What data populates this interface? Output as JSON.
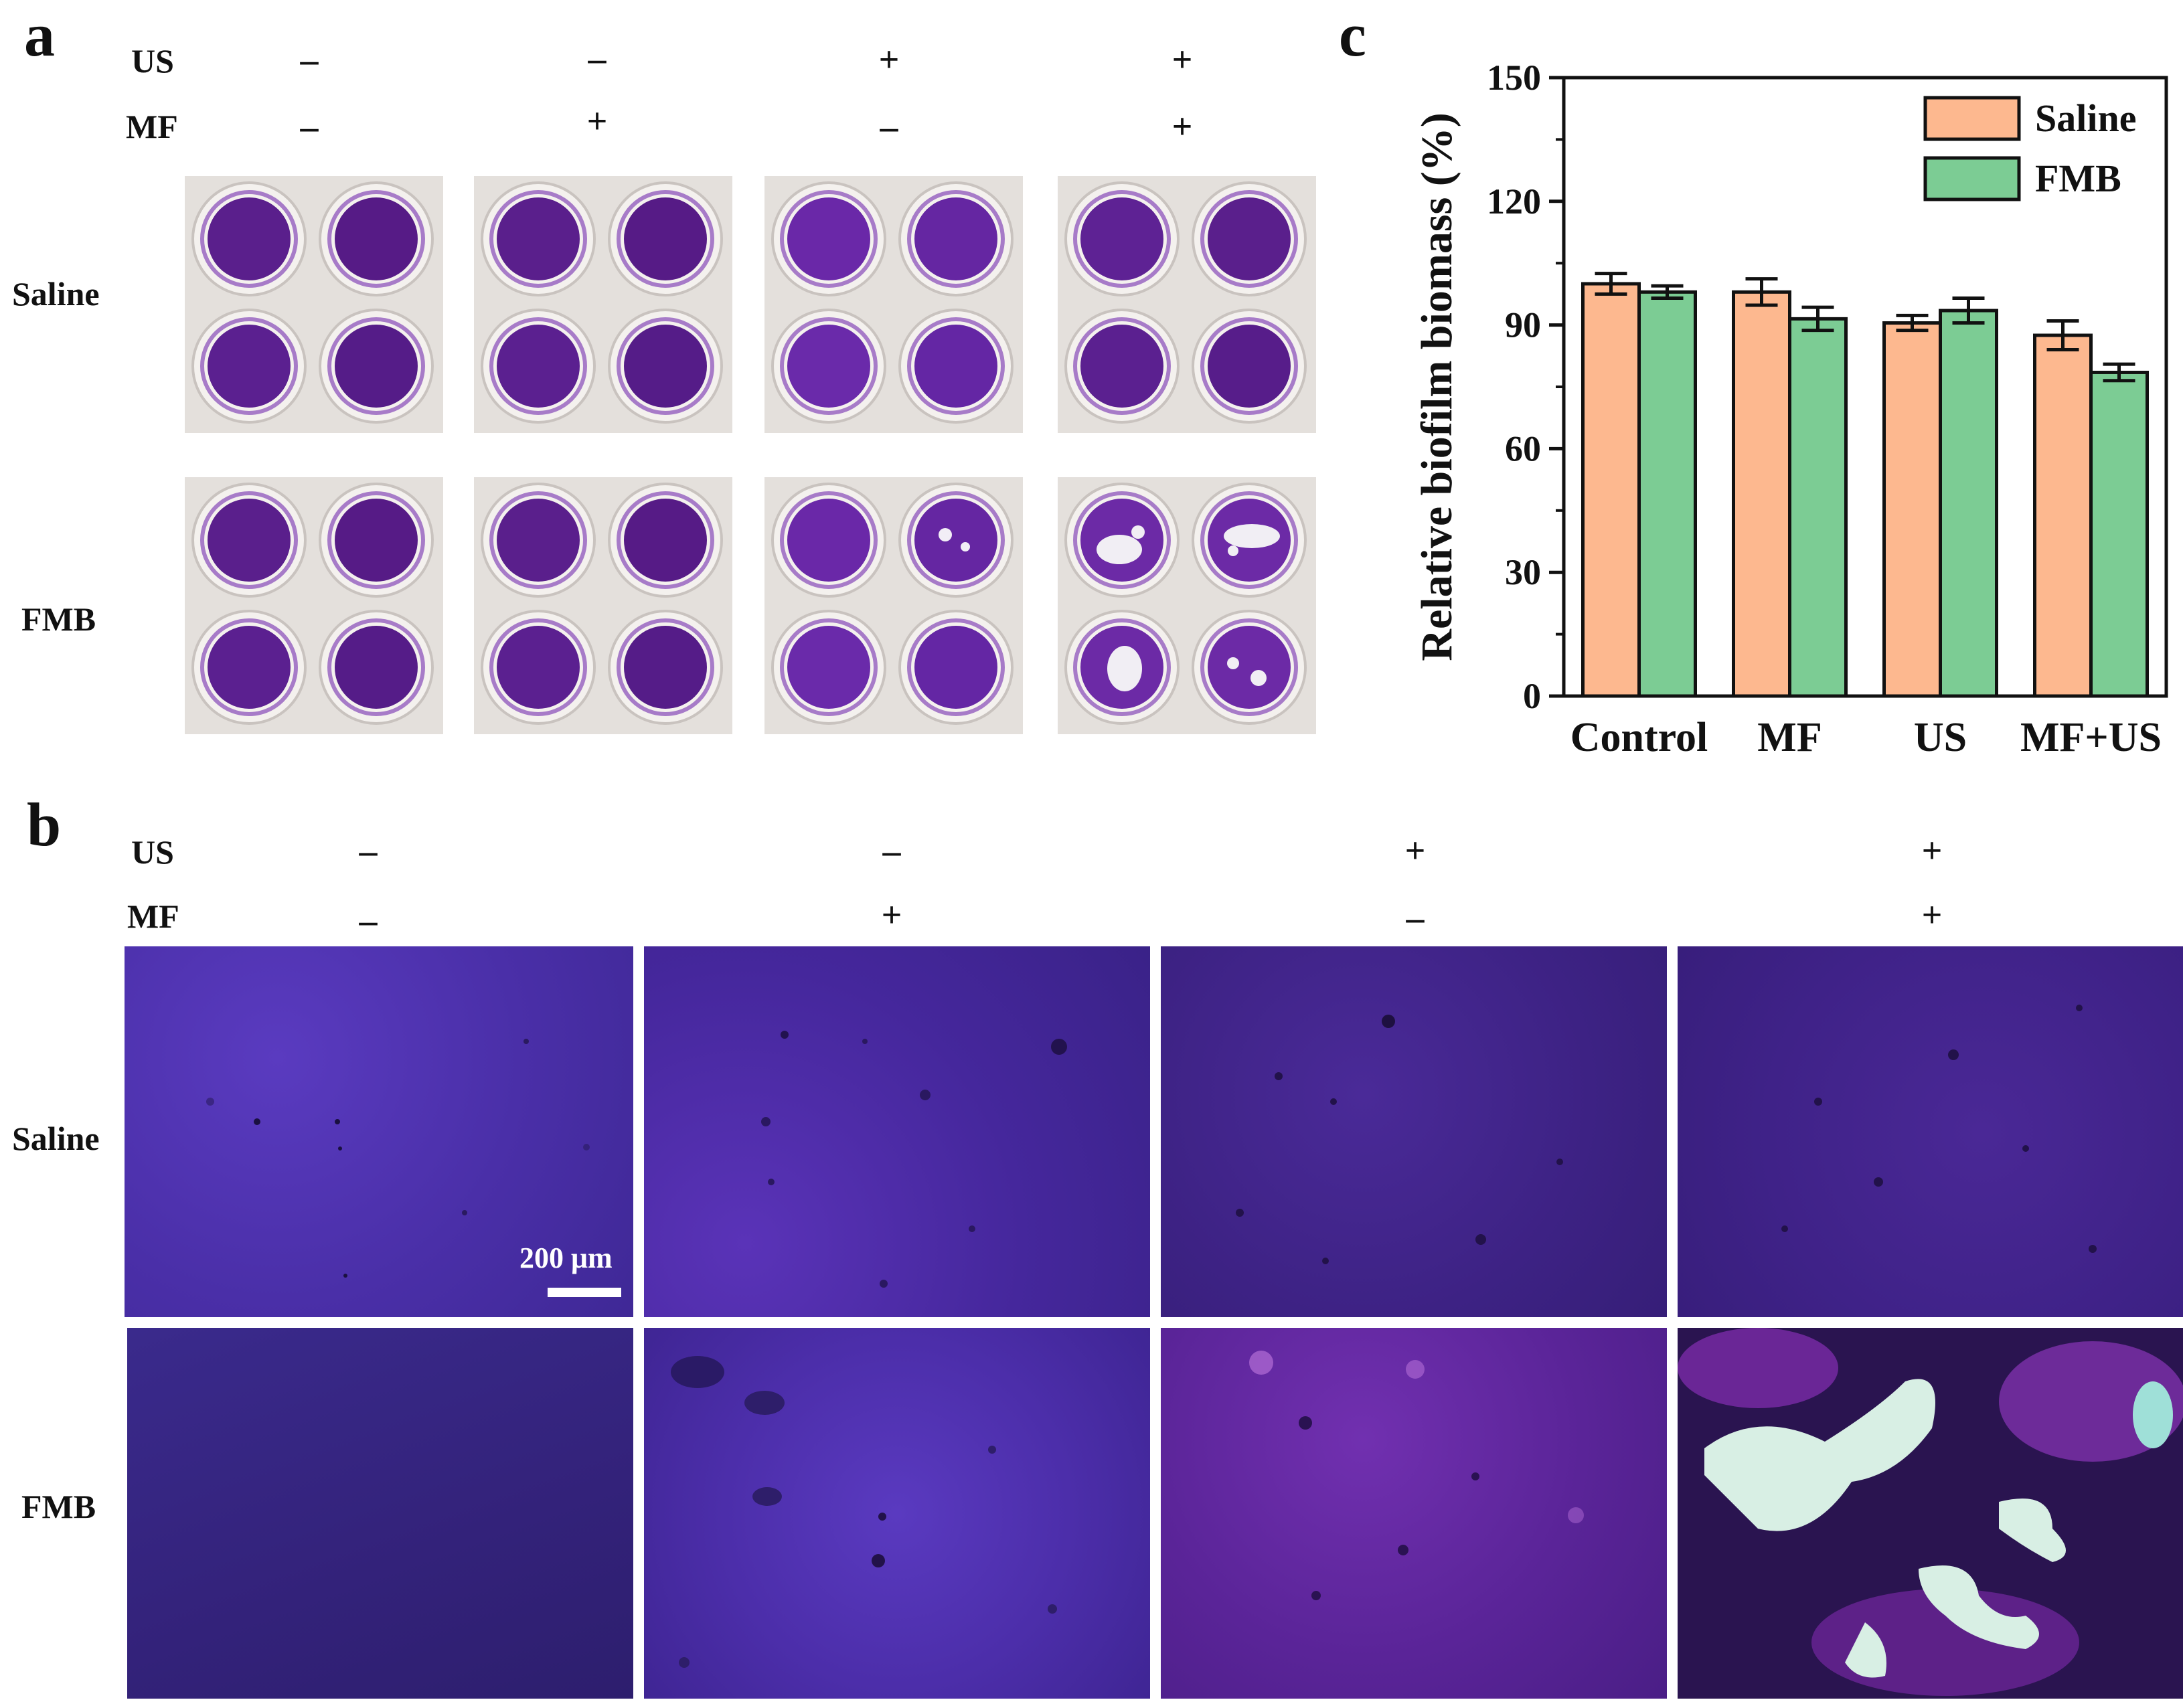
{
  "panels": {
    "a": {
      "letter": "a",
      "us_label": "US",
      "mf_label": "MF",
      "us_signs": [
        "–",
        "–",
        "+",
        "+"
      ],
      "mf_signs": [
        "–",
        "+",
        "–",
        "+"
      ],
      "rows": [
        "Saline",
        "FMB"
      ]
    },
    "b": {
      "letter": "b",
      "us_label": "US",
      "mf_label": "MF",
      "us_signs": [
        "–",
        "–",
        "+",
        "+"
      ],
      "mf_signs": [
        "–",
        "+",
        "–",
        "+"
      ],
      "rows": [
        "Saline",
        "FMB"
      ],
      "scale_bar": "200 μm"
    },
    "c": {
      "letter": "c"
    }
  },
  "chart_data": {
    "type": "bar",
    "title": "",
    "xlabel": "",
    "ylabel": "Relative biofilm biomass (%)",
    "categories": [
      "Control",
      "MF",
      "US",
      "MF+US"
    ],
    "series": [
      {
        "name": "Saline",
        "values": [
          100,
          98,
          90.5,
          87.5
        ],
        "errors": [
          2.5,
          3.2,
          1.8,
          3.5
        ],
        "color": "#fdb88f"
      },
      {
        "name": "FMB",
        "values": [
          98,
          91.5,
          93.5,
          78.5
        ],
        "errors": [
          1.5,
          2.8,
          3,
          2
        ],
        "color": "#7ccc94"
      }
    ],
    "ylim": [
      0,
      150
    ],
    "yticks": [
      0,
      30,
      60,
      90,
      120,
      150
    ],
    "legend_position": "top-right",
    "grid": false
  }
}
